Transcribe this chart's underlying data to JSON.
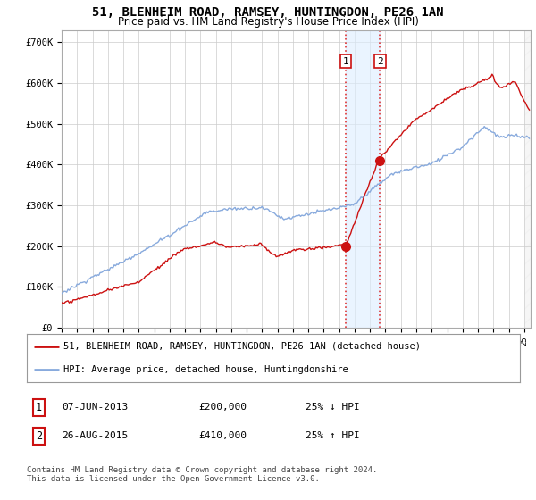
{
  "title": "51, BLENHEIM ROAD, RAMSEY, HUNTINGDON, PE26 1AN",
  "subtitle": "Price paid vs. HM Land Registry's House Price Index (HPI)",
  "ylabel_ticks": [
    "£0",
    "£100K",
    "£200K",
    "£300K",
    "£400K",
    "£500K",
    "£600K",
    "£700K"
  ],
  "ytick_values": [
    0,
    100000,
    200000,
    300000,
    400000,
    500000,
    600000,
    700000
  ],
  "ylim": [
    0,
    730000
  ],
  "purchase1_date": "2013-06-07",
  "purchase1_price": 200000,
  "purchase1_label": "1",
  "purchase2_date": "2015-08-26",
  "purchase2_price": 410000,
  "purchase2_label": "2",
  "shade_color": "#ddeeff",
  "shade_alpha": 0.6,
  "vline_color": "#dd3333",
  "vline_style": "--",
  "hpi_line_color": "#88aadd",
  "price_line_color": "#cc1111",
  "legend1_text": "51, BLENHEIM ROAD, RAMSEY, HUNTINGDON, PE26 1AN (detached house)",
  "legend2_text": "HPI: Average price, detached house, Huntingdonshire",
  "table_row1": [
    "1",
    "07-JUN-2013",
    "£200,000",
    "25% ↓ HPI"
  ],
  "table_row2": [
    "2",
    "26-AUG-2015",
    "£410,000",
    "25% ↑ HPI"
  ],
  "footer": "Contains HM Land Registry data © Crown copyright and database right 2024.\nThis data is licensed under the Open Government Licence v3.0.",
  "background_color": "#ffffff",
  "grid_color": "#cccccc",
  "title_fontsize": 10,
  "subtitle_fontsize": 8.5,
  "axis_fontsize": 7.5,
  "legend_fontsize": 7.5,
  "table_fontsize": 8,
  "footer_fontsize": 6.5
}
